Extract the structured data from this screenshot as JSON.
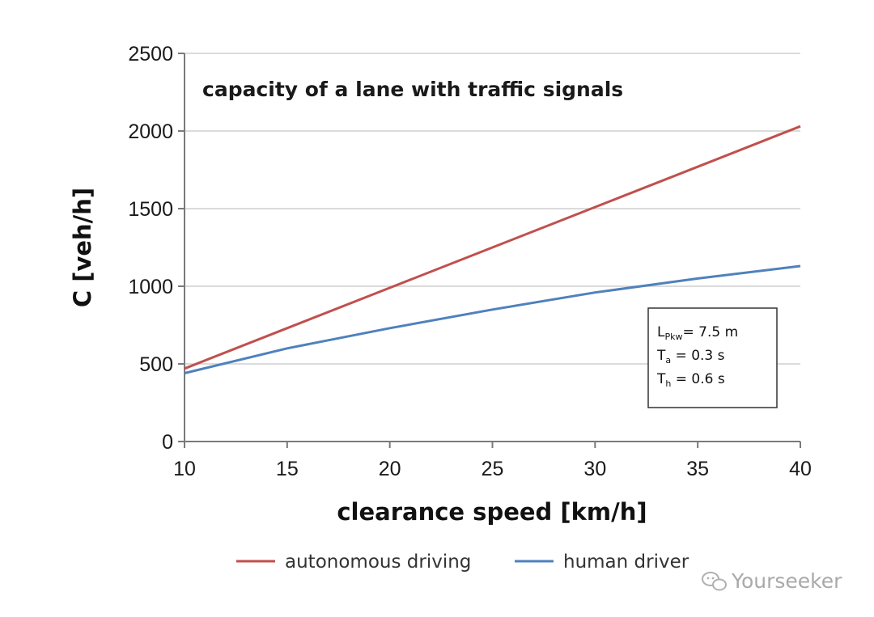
{
  "chart_data": {
    "type": "line",
    "title": "",
    "annotation": "capacity of a lane with traffic signals",
    "xlabel": "clearance speed [km/h]",
    "ylabel": "C [veh/h]",
    "xlim": [
      10,
      40
    ],
    "ylim": [
      0,
      2500
    ],
    "xticks": [
      10,
      15,
      20,
      25,
      30,
      35,
      40
    ],
    "yticks": [
      0,
      500,
      1000,
      1500,
      2000,
      2500
    ],
    "grid": "horizontal",
    "legend_position": "bottom",
    "x": [
      10,
      15,
      20,
      25,
      30,
      35,
      40
    ],
    "series": [
      {
        "name": "autonomous driving",
        "color": "#c0504d",
        "values": [
          470,
          730,
          990,
          1250,
          1510,
          1770,
          2030
        ]
      },
      {
        "name": "human driver",
        "color": "#4f81bd",
        "values": [
          440,
          600,
          730,
          850,
          960,
          1050,
          1130
        ]
      }
    ],
    "parameters": {
      "line1": {
        "main": "L",
        "sub": "Pkw",
        "rest": "= 7.5 m"
      },
      "line2": {
        "main": "T",
        "sub": "a",
        "rest": " = 0.3 s"
      },
      "line3": {
        "main": "T",
        "sub": "h",
        "rest": " = 0.6 s"
      }
    }
  },
  "watermark": {
    "text": "Yourseeker",
    "icon": "wechat-icon"
  }
}
